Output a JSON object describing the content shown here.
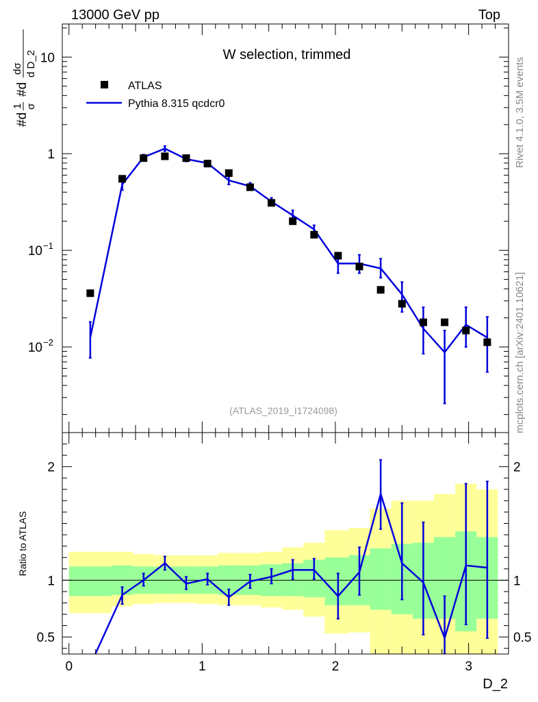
{
  "header": {
    "energy_label": "13000 GeV pp",
    "process_label": "Top"
  },
  "side_labels": {
    "rivet": "Rivet 4.1.0,  3.5M events",
    "mcplots": "mcplots.cern.ch [arXiv:2401.10621]"
  },
  "colors": {
    "mc": "#0000dd",
    "data": "#000000",
    "band_inner": "#99ff99",
    "band_outer": "#ffff99",
    "watermark": "#999999"
  },
  "chart_data": [
    {
      "type": "line",
      "panel": "main",
      "title": "W selection, trimmed",
      "analysis_label": "(ATLAS_2019_I1724098)",
      "ylabel": "#d1/σ #dd σ/d D_2",
      "xlabel": "D_2",
      "yscale": "log",
      "ylim": [
        0.0013,
        22
      ],
      "xlim": [
        -0.05,
        3.3
      ],
      "y_ticks": [
        {
          "value": 0.01,
          "base": "10",
          "exp": "−2"
        },
        {
          "value": 0.1,
          "base": "10",
          "exp": "−1"
        },
        {
          "value": 1,
          "label": "1"
        },
        {
          "value": 10,
          "label": "10"
        }
      ],
      "legend": [
        {
          "label": "ATLAS",
          "kind": "marker"
        },
        {
          "label": "Pythia 8.315 qcdcr0",
          "kind": "line"
        }
      ],
      "data_series": {
        "name": "ATLAS",
        "x": [
          0.16,
          0.4,
          0.56,
          0.72,
          0.88,
          1.04,
          1.2,
          1.36,
          1.52,
          1.68,
          1.84,
          2.02,
          2.18,
          2.34,
          2.5,
          2.66,
          2.82,
          2.98,
          3.14
        ],
        "y": [
          0.036,
          0.55,
          0.9,
          0.94,
          0.9,
          0.79,
          0.63,
          0.45,
          0.31,
          0.2,
          0.145,
          0.088,
          0.068,
          0.039,
          0.028,
          0.018,
          0.018,
          0.0148,
          0.0112
        ]
      },
      "mc_series": {
        "name": "Pythia 8.315 qcdcr0",
        "x": [
          0.16,
          0.4,
          0.56,
          0.72,
          0.88,
          1.04,
          1.2,
          1.36,
          1.52,
          1.68,
          1.84,
          2.02,
          2.18,
          2.34,
          2.5,
          2.66,
          2.82,
          2.98,
          3.14
        ],
        "y": [
          0.0125,
          0.48,
          0.92,
          1.13,
          0.88,
          0.8,
          0.53,
          0.46,
          0.32,
          0.23,
          0.165,
          0.073,
          0.073,
          0.065,
          0.035,
          0.0155,
          0.0088,
          0.017,
          0.0125
        ],
        "err_lo": [
          0.0077,
          0.42,
          0.86,
          1.06,
          0.83,
          0.76,
          0.48,
          0.42,
          0.29,
          0.205,
          0.148,
          0.058,
          0.058,
          0.052,
          0.023,
          0.0085,
          0.0026,
          0.01,
          0.0055
        ],
        "err_hi": [
          0.0182,
          0.54,
          0.98,
          1.2,
          0.94,
          0.84,
          0.58,
          0.5,
          0.35,
          0.26,
          0.182,
          0.09,
          0.09,
          0.082,
          0.047,
          0.0258,
          0.0148,
          0.0258,
          0.0205
        ]
      }
    },
    {
      "type": "line",
      "panel": "ratio",
      "ylabel": "Ratio to ATLAS",
      "xlabel": "D_2",
      "ylim": [
        0.35,
        2.3
      ],
      "xlim": [
        -0.05,
        3.3
      ],
      "y_ticks": [
        0.5,
        1,
        2
      ],
      "y_tick_labels": [
        "0.5",
        "1",
        "2"
      ],
      "x_ticks": [
        0,
        1,
        2,
        3
      ],
      "x_tick_labels": [
        "0",
        "1",
        "2",
        "3"
      ],
      "bands": {
        "edges": [
          0.0,
          0.32,
          0.48,
          0.64,
          0.8,
          0.96,
          1.12,
          1.28,
          1.44,
          1.6,
          1.76,
          1.92,
          2.1,
          2.26,
          2.42,
          2.58,
          2.74,
          2.9,
          3.06,
          3.22
        ],
        "inner_lo": [
          0.86,
          0.87,
          0.88,
          0.88,
          0.88,
          0.88,
          0.87,
          0.87,
          0.86,
          0.86,
          0.85,
          0.78,
          0.78,
          0.74,
          0.7,
          0.66,
          0.66,
          0.55,
          0.66
        ],
        "inner_hi": [
          1.12,
          1.13,
          1.12,
          1.12,
          1.12,
          1.12,
          1.13,
          1.13,
          1.14,
          1.15,
          1.18,
          1.2,
          1.22,
          1.28,
          1.32,
          1.33,
          1.38,
          1.43,
          1.38
        ],
        "outer_lo": [
          0.71,
          0.77,
          0.79,
          0.8,
          0.8,
          0.79,
          0.78,
          0.78,
          0.76,
          0.74,
          0.68,
          0.53,
          0.54,
          0.33,
          0.33,
          0.33,
          0.33,
          0.33,
          0.33
        ],
        "outer_hi": [
          1.25,
          1.25,
          1.23,
          1.22,
          1.22,
          1.22,
          1.24,
          1.24,
          1.25,
          1.29,
          1.33,
          1.44,
          1.46,
          1.63,
          1.7,
          1.7,
          1.76,
          1.85,
          1.8
        ]
      },
      "mc_ratio": {
        "x": [
          0.16,
          0.4,
          0.56,
          0.72,
          0.88,
          1.04,
          1.2,
          1.36,
          1.52,
          1.68,
          1.84,
          2.02,
          2.18,
          2.34,
          2.5,
          2.66,
          2.82,
          2.98,
          3.14
        ],
        "y": [
          0.35,
          0.87,
          1.0,
          1.15,
          0.97,
          1.01,
          0.85,
          0.99,
          1.03,
          1.09,
          1.09,
          0.86,
          1.07,
          1.76,
          1.15,
          0.98,
          0.49,
          1.13,
          1.11
        ],
        "err_lo": [
          null,
          0.79,
          0.95,
          1.09,
          0.92,
          0.96,
          0.78,
          0.93,
          0.97,
          1.01,
          1.01,
          0.66,
          0.87,
          1.45,
          0.83,
          0.52,
          0.35,
          0.61,
          0.49
        ],
        "err_hi": [
          null,
          0.94,
          1.06,
          1.21,
          1.03,
          1.06,
          0.92,
          1.05,
          1.1,
          1.18,
          1.19,
          1.06,
          1.29,
          2.06,
          1.68,
          1.51,
          0.86,
          1.85,
          1.87
        ]
      }
    }
  ]
}
